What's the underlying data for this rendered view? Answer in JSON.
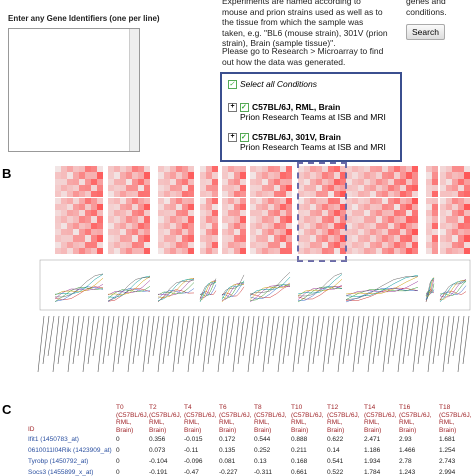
{
  "panel_a": {
    "prompt": "Enter any Gene Identifiers (one per line)",
    "description": "Experiments are named according to mouse and prion strains used as well as to the tissue from which the sample was taken, e.g. \"BL6 (mouse strain), 301V (prion strain), Brain (sample tissue)\".",
    "research_note": "Please go to Research > Microarray to find out how the data was generated.",
    "side_note": "genes and conditions.",
    "search_button": "Search",
    "select_all": "Select all Conditions",
    "conditions": [
      {
        "name": "C57BL/6J, RML, Brain",
        "source": "Prion Research Teams at ISB and MRI"
      },
      {
        "name": "C57BL/6J, 301V, Brain",
        "source": "Prion Research Teams at ISB and MRI"
      }
    ]
  },
  "panel_b": {
    "label": "B"
  },
  "panel_c": {
    "label": "C",
    "table": {
      "header": [
        "ID",
        "T0\n(C57BL/6J,\nRML,\nBrain)",
        "T2\n(C57BL/6J,\nRML,\nBrain)",
        "T4\n(C57BL/6J,\nRML,\nBrain)",
        "T6\n(C57BL/6J,\nRML,\nBrain)",
        "T8\n(C57BL/6J,\nRML,\nBrain)",
        "T10\n(C57BL/6J,\nRML,\nBrain)",
        "T12\n(C57BL/6J,\nRML,\nBrain)",
        "T14\n(C57BL/6J,\nRML,\nBrain)",
        "T16\n(C57BL/6J,\nRML,\nBrain)",
        "T18\n(C57BL/6J,\nRML,\nBrain)"
      ],
      "rows": [
        [
          "Ifit1 (1450783_at)",
          0,
          0.356,
          -0.015,
          0.172,
          0.544,
          0.888,
          0.622,
          2.471,
          2.93,
          1.681
        ],
        [
          "0610011I04Rik (1423909_at)",
          0,
          0.073,
          -0.11,
          0.135,
          0.252,
          0.211,
          0.14,
          1.186,
          1.466,
          1.254
        ],
        [
          "Tyrobp (1450792_at)",
          0,
          -0.104,
          -0.096,
          0.081,
          0.13,
          0.168,
          0.541,
          1.934,
          2.78,
          2.743
        ],
        [
          "Socs3 (1455899_x_at)",
          0,
          -0.191,
          -0.47,
          -0.227,
          -0.311,
          0.661,
          0.522,
          1.784,
          1.243,
          2.994
        ]
      ]
    }
  }
}
